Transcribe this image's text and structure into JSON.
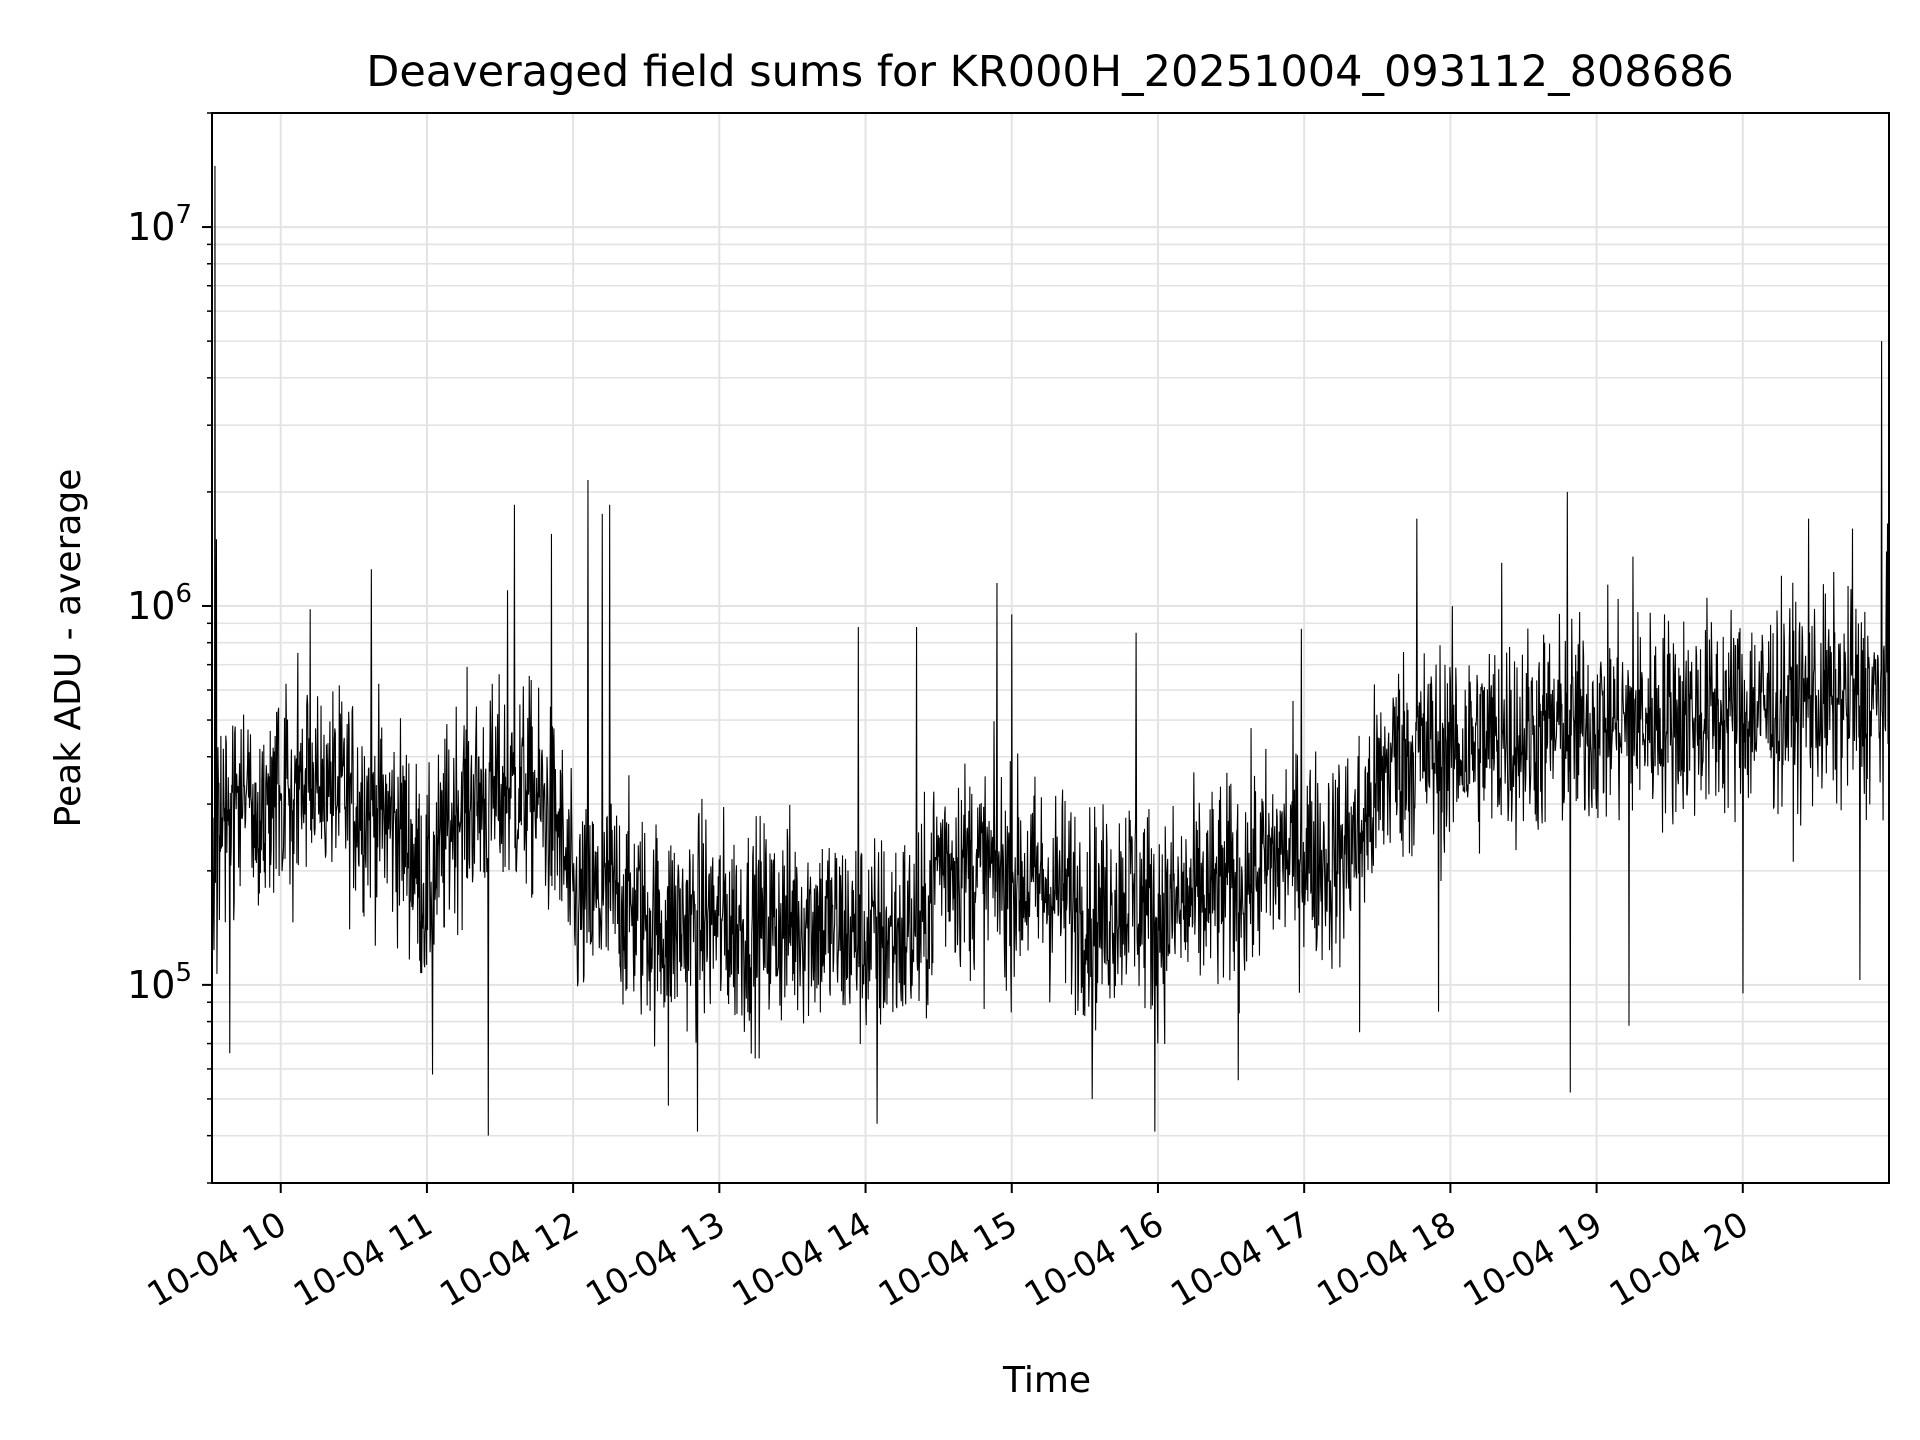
{
  "chart_data": {
    "type": "line",
    "title": "Deaveraged field sums for KR000H_20251004_093112_808686",
    "xlabel": "Time",
    "ylabel": "Peak ADU - average",
    "yscale": "log",
    "ylim": [
      30000,
      20000000
    ],
    "xlim_hours": [
      9.53,
      21.0
    ],
    "grid": true,
    "xticks": [
      {
        "hour": 10,
        "label": "10-04 10"
      },
      {
        "hour": 11,
        "label": "10-04 11"
      },
      {
        "hour": 12,
        "label": "10-04 12"
      },
      {
        "hour": 13,
        "label": "10-04 13"
      },
      {
        "hour": 14,
        "label": "10-04 14"
      },
      {
        "hour": 15,
        "label": "10-04 15"
      },
      {
        "hour": 16,
        "label": "10-04 16"
      },
      {
        "hour": 17,
        "label": "10-04 17"
      },
      {
        "hour": 18,
        "label": "10-04 18"
      },
      {
        "hour": 19,
        "label": "10-04 19"
      },
      {
        "hour": 20,
        "label": "10-04 20"
      }
    ],
    "yticks": [
      {
        "value": 100000,
        "base": "10",
        "exp": "5"
      },
      {
        "value": 1000000,
        "base": "10",
        "exp": "6"
      },
      {
        "value": 10000000,
        "base": "10",
        "exp": "7"
      }
    ],
    "series": [
      {
        "name": "Deaveraged field sums",
        "color": "#000000",
        "trend": [
          [
            9.53,
            280000
          ],
          [
            9.7,
            300000
          ],
          [
            10.0,
            310000
          ],
          [
            10.3,
            330000
          ],
          [
            10.6,
            300000
          ],
          [
            10.85,
            250000
          ],
          [
            11.0,
            170000
          ],
          [
            11.2,
            300000
          ],
          [
            11.5,
            320000
          ],
          [
            11.7,
            330000
          ],
          [
            11.9,
            260000
          ],
          [
            12.0,
            160000
          ],
          [
            12.3,
            170000
          ],
          [
            12.6,
            140000
          ],
          [
            12.9,
            150000
          ],
          [
            13.2,
            140000
          ],
          [
            13.6,
            150000
          ],
          [
            14.0,
            130000
          ],
          [
            14.4,
            140000
          ],
          [
            14.5,
            220000
          ],
          [
            14.8,
            200000
          ],
          [
            15.0,
            190000
          ],
          [
            15.3,
            180000
          ],
          [
            15.6,
            150000
          ],
          [
            15.8,
            180000
          ],
          [
            16.0,
            150000
          ],
          [
            16.3,
            170000
          ],
          [
            16.6,
            190000
          ],
          [
            16.9,
            230000
          ],
          [
            17.2,
            210000
          ],
          [
            17.4,
            260000
          ],
          [
            17.6,
            400000
          ],
          [
            18.0,
            420000
          ],
          [
            18.4,
            450000
          ],
          [
            18.8,
            480000
          ],
          [
            19.2,
            500000
          ],
          [
            19.6,
            510000
          ],
          [
            20.0,
            530000
          ],
          [
            20.5,
            560000
          ],
          [
            21.0,
            560000
          ]
        ],
        "spikes": [
          {
            "hour": 9.55,
            "value": 14500000
          },
          {
            "hour": 9.56,
            "value": 1500000
          },
          {
            "hour": 10.2,
            "value": 980000
          },
          {
            "hour": 10.62,
            "value": 1250000
          },
          {
            "hour": 11.6,
            "value": 1850000
          },
          {
            "hour": 11.55,
            "value": 1100000
          },
          {
            "hour": 11.85,
            "value": 1550000
          },
          {
            "hour": 12.1,
            "value": 2150000
          },
          {
            "hour": 12.2,
            "value": 1750000
          },
          {
            "hour": 12.25,
            "value": 1850000
          },
          {
            "hour": 13.95,
            "value": 880000
          },
          {
            "hour": 14.35,
            "value": 880000
          },
          {
            "hour": 14.9,
            "value": 1150000
          },
          {
            "hour": 15.0,
            "value": 950000
          },
          {
            "hour": 15.85,
            "value": 850000
          },
          {
            "hour": 16.98,
            "value": 870000
          },
          {
            "hour": 17.77,
            "value": 1700000
          },
          {
            "hour": 18.35,
            "value": 1300000
          },
          {
            "hour": 18.8,
            "value": 2000000
          },
          {
            "hour": 19.25,
            "value": 1350000
          },
          {
            "hour": 20.45,
            "value": 1700000
          },
          {
            "hour": 20.75,
            "value": 1600000
          },
          {
            "hour": 20.95,
            "value": 5000000
          },
          {
            "hour": 20.99,
            "value": 1650000
          }
        ],
        "dips": [
          {
            "hour": 9.65,
            "value": 66000
          },
          {
            "hour": 11.04,
            "value": 58000
          },
          {
            "hour": 11.42,
            "value": 40000
          },
          {
            "hour": 12.65,
            "value": 48000
          },
          {
            "hour": 12.85,
            "value": 41000
          },
          {
            "hour": 14.08,
            "value": 43000
          },
          {
            "hour": 15.55,
            "value": 50000
          },
          {
            "hour": 15.98,
            "value": 41000
          },
          {
            "hour": 16.55,
            "value": 56000
          },
          {
            "hour": 17.38,
            "value": 75000
          },
          {
            "hour": 17.92,
            "value": 85000
          },
          {
            "hour": 18.82,
            "value": 52000
          },
          {
            "hour": 19.22,
            "value": 78000
          },
          {
            "hour": 20.0,
            "value": 95000
          },
          {
            "hour": 20.8,
            "value": 103000
          }
        ]
      }
    ]
  }
}
